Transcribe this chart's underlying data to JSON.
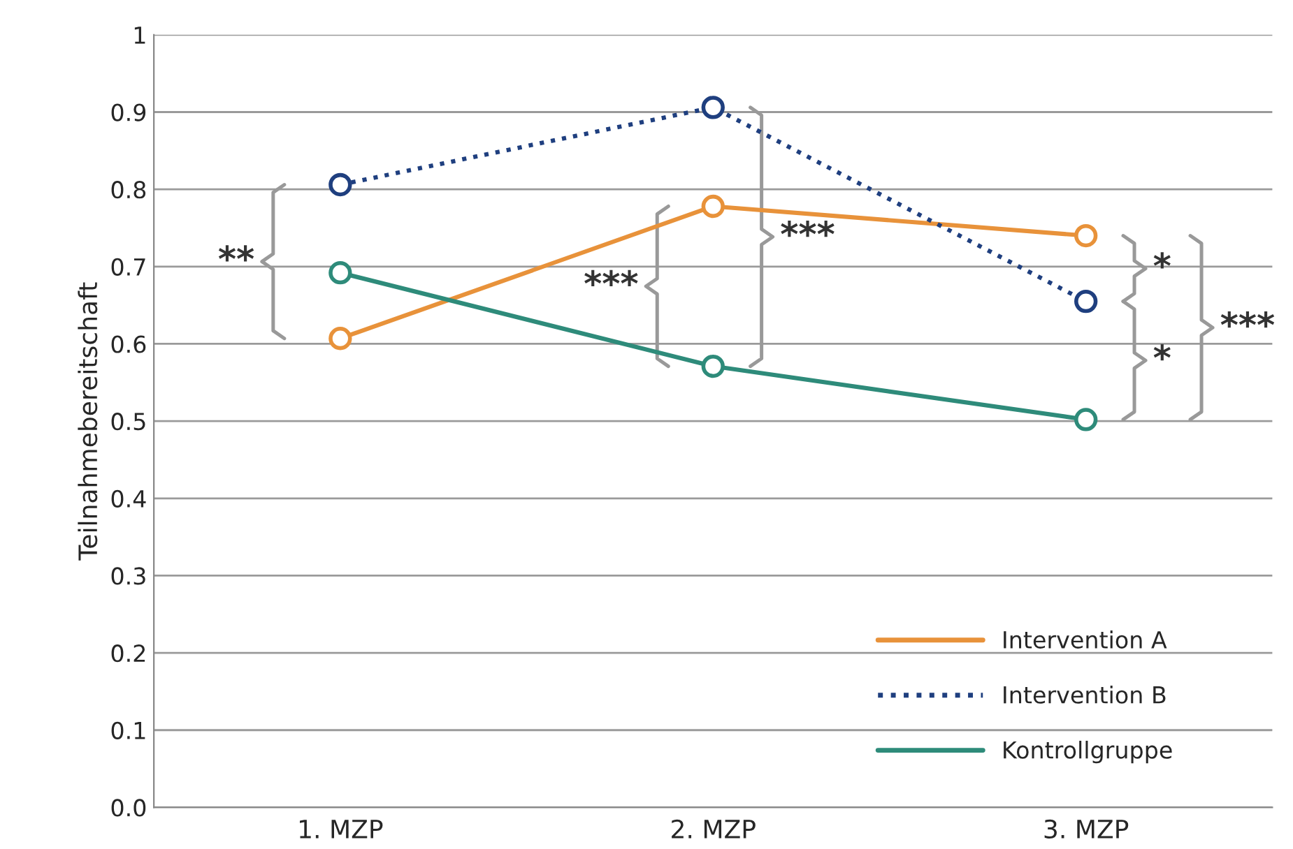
{
  "chart_data": {
    "type": "line",
    "ylabel": "Teilnahmebereitschaft",
    "categories": [
      "1. MZP",
      "2. MZP",
      "3. MZP"
    ],
    "series": [
      {
        "name": "Intervention A",
        "color": "#e8923a",
        "values": [
          0.607,
          0.778,
          0.74
        ],
        "line_style": "solid"
      },
      {
        "name": "Intervention B",
        "color": "#1f3f7f",
        "values": [
          0.806,
          0.906,
          0.655
        ],
        "line_style": "dotted"
      },
      {
        "name": "Kontrollgruppe",
        "color": "#2e8b7a",
        "values": [
          0.692,
          0.571,
          0.502
        ],
        "line_style": "solid"
      }
    ],
    "ylim": [
      0,
      1
    ],
    "yticks": [
      {
        "value": 0,
        "label": "0.0"
      },
      0.1,
      0.2,
      0.3,
      0.4,
      0.5,
      0.6,
      0.7,
      0.8,
      0.9,
      1
    ],
    "grid": "y",
    "legend": "bottom right",
    "marker": "circle",
    "annotations": [
      "**",
      "***",
      "***",
      "*",
      "*",
      "***"
    ]
  }
}
